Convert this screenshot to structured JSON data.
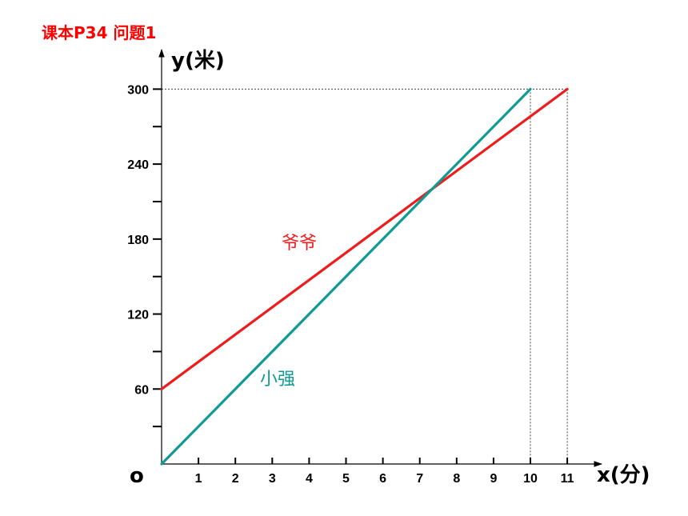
{
  "chart_data": {
    "type": "line",
    "title": "课本P34 问题1",
    "xlabel": "x(分)",
    "ylabel": "y(米)",
    "origin_label": "o",
    "xlim": [
      0,
      11
    ],
    "ylim": [
      0,
      300
    ],
    "x_ticks": [
      1,
      2,
      3,
      4,
      5,
      6,
      7,
      8,
      9,
      10,
      11
    ],
    "y_ticks": [
      30,
      60,
      90,
      120,
      150,
      180,
      210,
      240,
      270,
      300
    ],
    "y_tick_labels": [
      {
        "value": 60,
        "label": "60"
      },
      {
        "value": 120,
        "label": "120"
      },
      {
        "value": 180,
        "label": "180"
      },
      {
        "value": 240,
        "label": "240"
      },
      {
        "value": 300,
        "label": "300"
      }
    ],
    "grid": false,
    "series": [
      {
        "name": "爷爷",
        "color": "#ee1c1c",
        "x": [
          0,
          11
        ],
        "y": [
          60,
          300
        ]
      },
      {
        "name": "小强",
        "color": "#0f9a94",
        "x": [
          0,
          10
        ],
        "y": [
          0,
          300
        ]
      }
    ],
    "reference_lines": [
      {
        "x": 10,
        "y": 300
      },
      {
        "x": 11,
        "y": 300
      }
    ]
  }
}
